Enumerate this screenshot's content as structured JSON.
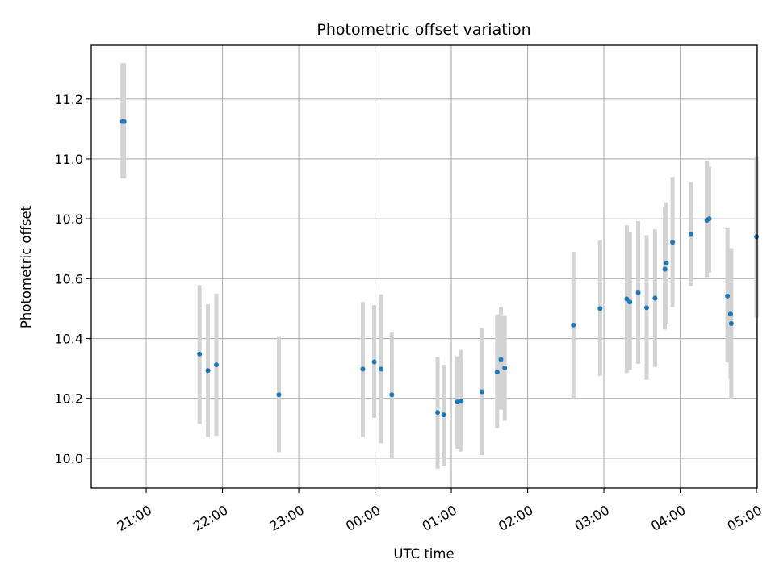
{
  "chart_data": {
    "type": "scatter",
    "title": "Photometric offset variation",
    "xlabel": "UTC time",
    "ylabel": "Photometric offset",
    "xlim": [
      -3.72,
      5.01
    ],
    "ylim": [
      9.9,
      11.38
    ],
    "grid": true,
    "x_ticks": [
      {
        "label": "21:00",
        "value": -3
      },
      {
        "label": "22:00",
        "value": -2
      },
      {
        "label": "23:00",
        "value": -1
      },
      {
        "label": "00:00",
        "value": 0
      },
      {
        "label": "01:00",
        "value": 1
      },
      {
        "label": "02:00",
        "value": 2
      },
      {
        "label": "03:00",
        "value": 3
      },
      {
        "label": "04:00",
        "value": 4
      },
      {
        "label": "05:00",
        "value": 5
      }
    ],
    "y_ticks": [
      {
        "label": "10.0",
        "value": 10.0
      },
      {
        "label": "10.2",
        "value": 10.2
      },
      {
        "label": "10.4",
        "value": 10.4
      },
      {
        "label": "10.6",
        "value": 10.6
      },
      {
        "label": "10.8",
        "value": 10.8
      },
      {
        "label": "11.0",
        "value": 11.0
      },
      {
        "label": "11.2",
        "value": 11.2
      }
    ],
    "colors": {
      "points": "#1f77b4",
      "errorbars": "#d3d3d3",
      "grid": "#b0b0b0"
    },
    "series": [
      {
        "points": [
          {
            "x": -3.31,
            "y": 11.125,
            "lo": 10.935,
            "hi": 11.32
          },
          {
            "x": -3.29,
            "y": 11.125,
            "lo": 10.935,
            "hi": 11.32
          },
          {
            "x": -2.3,
            "y": 10.348,
            "lo": 10.115,
            "hi": 10.578
          },
          {
            "x": -2.19,
            "y": 10.293,
            "lo": 10.072,
            "hi": 10.515
          },
          {
            "x": -2.08,
            "y": 10.312,
            "lo": 10.075,
            "hi": 10.55
          },
          {
            "x": -1.26,
            "y": 10.212,
            "lo": 10.02,
            "hi": 10.405
          },
          {
            "x": -0.16,
            "y": 10.298,
            "lo": 10.072,
            "hi": 10.522
          },
          {
            "x": -0.01,
            "y": 10.322,
            "lo": 10.135,
            "hi": 10.512
          },
          {
            "x": 0.08,
            "y": 10.298,
            "lo": 10.05,
            "hi": 10.548
          },
          {
            "x": 0.22,
            "y": 10.212,
            "lo": 10.002,
            "hi": 10.42
          },
          {
            "x": 0.82,
            "y": 10.153,
            "lo": 9.965,
            "hi": 10.338
          },
          {
            "x": 0.9,
            "y": 10.145,
            "lo": 9.975,
            "hi": 10.312
          },
          {
            "x": 1.08,
            "y": 10.188,
            "lo": 10.032,
            "hi": 10.34
          },
          {
            "x": 1.13,
            "y": 10.19,
            "lo": 10.022,
            "hi": 10.362
          },
          {
            "x": 1.4,
            "y": 10.222,
            "lo": 10.01,
            "hi": 10.435
          },
          {
            "x": 1.6,
            "y": 10.288,
            "lo": 10.1,
            "hi": 10.48
          },
          {
            "x": 1.65,
            "y": 10.33,
            "lo": 10.162,
            "hi": 10.505
          },
          {
            "x": 1.7,
            "y": 10.302,
            "lo": 10.125,
            "hi": 10.478
          },
          {
            "x": 2.6,
            "y": 10.445,
            "lo": 10.2,
            "hi": 10.69
          },
          {
            "x": 2.95,
            "y": 10.5,
            "lo": 10.275,
            "hi": 10.728
          },
          {
            "x": 3.3,
            "y": 10.532,
            "lo": 10.285,
            "hi": 10.778
          },
          {
            "x": 3.34,
            "y": 10.522,
            "lo": 10.295,
            "hi": 10.755
          },
          {
            "x": 3.45,
            "y": 10.553,
            "lo": 10.315,
            "hi": 10.792
          },
          {
            "x": 3.56,
            "y": 10.503,
            "lo": 10.262,
            "hi": 10.745
          },
          {
            "x": 3.67,
            "y": 10.535,
            "lo": 10.305,
            "hi": 10.765
          },
          {
            "x": 3.8,
            "y": 10.632,
            "lo": 10.43,
            "hi": 10.84
          },
          {
            "x": 3.82,
            "y": 10.652,
            "lo": 10.45,
            "hi": 10.855
          },
          {
            "x": 3.9,
            "y": 10.722,
            "lo": 10.505,
            "hi": 10.94
          },
          {
            "x": 4.14,
            "y": 10.748,
            "lo": 10.575,
            "hi": 10.922
          },
          {
            "x": 4.35,
            "y": 10.795,
            "lo": 10.605,
            "hi": 10.995
          },
          {
            "x": 4.38,
            "y": 10.8,
            "lo": 10.62,
            "hi": 10.975
          },
          {
            "x": 4.62,
            "y": 10.542,
            "lo": 10.32,
            "hi": 10.768
          },
          {
            "x": 4.66,
            "y": 10.482,
            "lo": 10.265,
            "hi": 10.702
          },
          {
            "x": 4.67,
            "y": 10.45,
            "lo": 10.198,
            "hi": 10.702
          },
          {
            "x": 5.0,
            "y": 10.74,
            "lo": 10.47,
            "hi": 11.01
          }
        ]
      }
    ]
  }
}
